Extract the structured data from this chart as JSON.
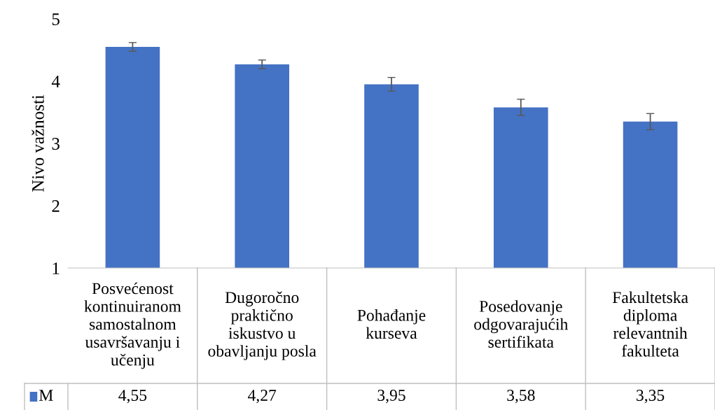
{
  "chart_data": {
    "type": "bar",
    "ylabel": "Nivo važnosti",
    "categories": [
      "Posvećenost kontinuiranom samostalnom usavršavanju i učenju",
      "Dugoročno praktično iskustvo u obavljanju posla",
      "Pohađanje kurseva",
      "Posedovanje odgovarajućih sertifikata",
      "Fakultetska diploma relevantnih fakulteta"
    ],
    "series": [
      {
        "name": "M",
        "color": "#4472c4",
        "values": [
          4.55,
          4.27,
          3.95,
          3.58,
          3.35
        ],
        "errors": [
          0.07,
          0.07,
          0.11,
          0.13,
          0.13
        ],
        "value_labels": [
          "4,55",
          "4,27",
          "3,95",
          "3,58",
          "3,35"
        ]
      }
    ],
    "ylim": [
      1,
      5
    ],
    "yticks": [
      1,
      2,
      3,
      4,
      5
    ],
    "grid": false,
    "legend": "bottom"
  }
}
